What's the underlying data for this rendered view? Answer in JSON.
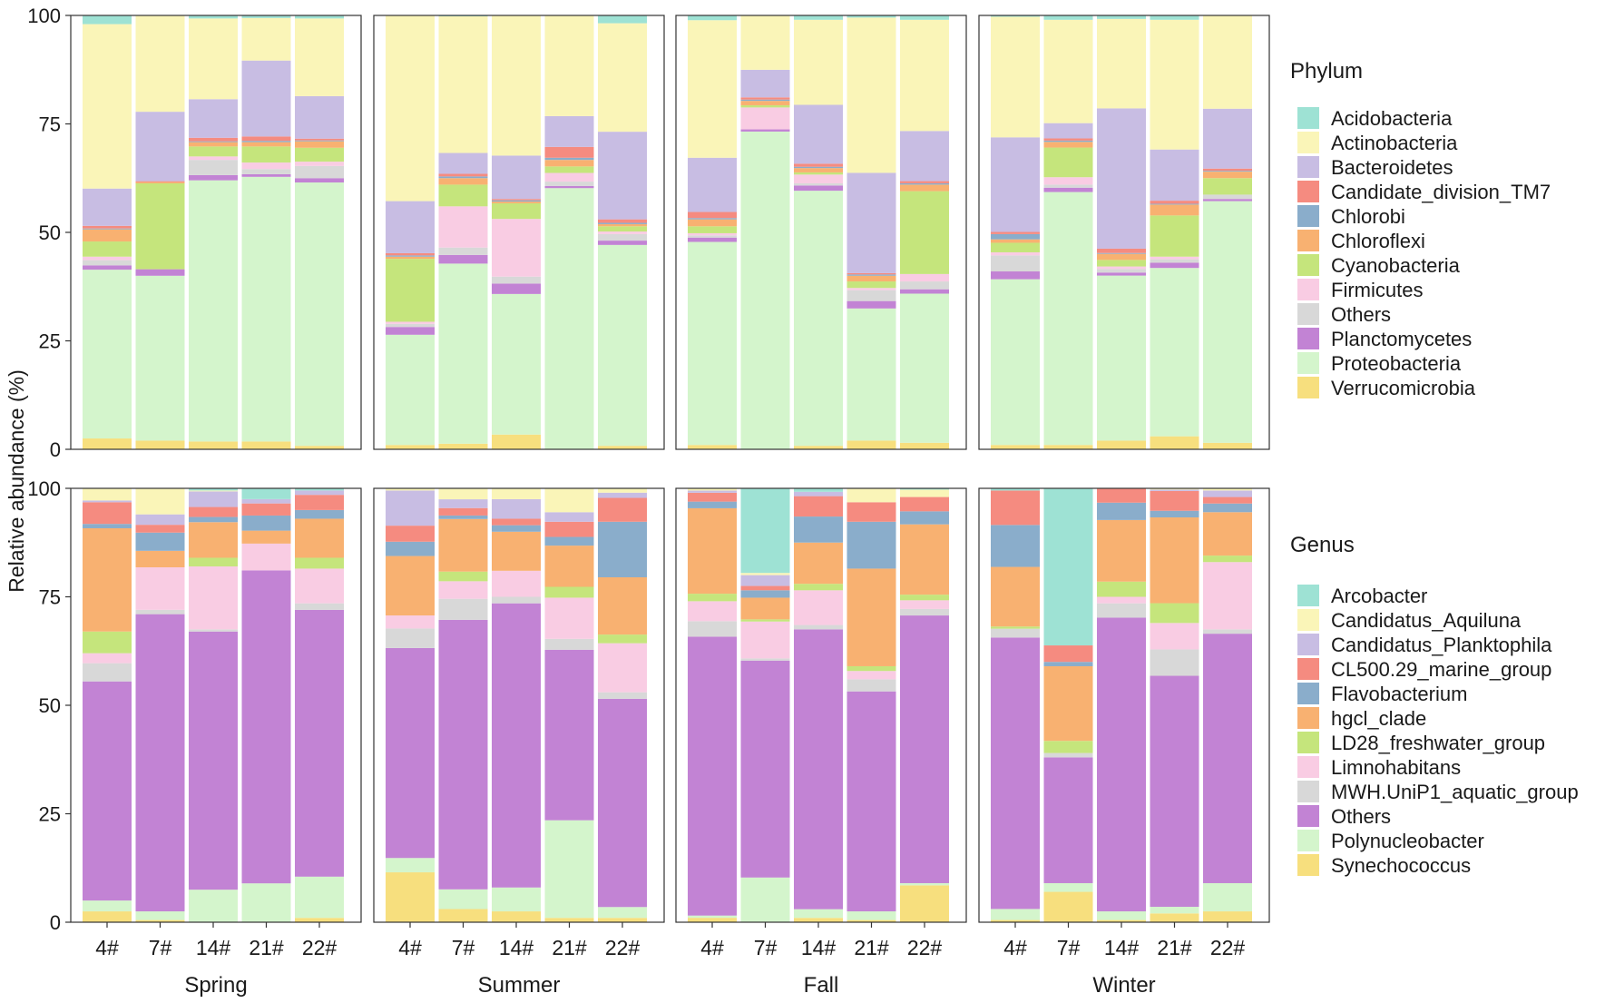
{
  "chart_data": [
    {
      "type": "bar",
      "subtype": "stacked-100",
      "level": "Phylum",
      "legend_title": "Phylum",
      "ylabel": "Relative abundance (%)",
      "ylim": [
        0,
        100
      ],
      "yticks": [
        0,
        25,
        50,
        75,
        100
      ],
      "seasons": [
        "Spring",
        "Summer",
        "Fall",
        "Winter"
      ],
      "sites": [
        "4#",
        "7#",
        "14#",
        "21#",
        "22#"
      ],
      "stack_order": [
        "Verrucomicrobia",
        "Proteobacteria",
        "Planctomycetes",
        "Others",
        "Firmicutes",
        "Cyanobacteria",
        "Chloroflexi",
        "Chlorobi",
        "Candidate_division_TM7",
        "Bacteroidetes",
        "Actinobacteria",
        "Acidobacteria"
      ],
      "legend": [
        {
          "name": "Acidobacteria",
          "color": "#9EE2D4"
        },
        {
          "name": "Actinobacteria",
          "color": "#FAF5B8"
        },
        {
          "name": "Bacteroidetes",
          "color": "#C8BDE3"
        },
        {
          "name": "Candidate_division_TM7",
          "color": "#F58B80"
        },
        {
          "name": "Chlorobi",
          "color": "#8AADCB"
        },
        {
          "name": "Chloroflexi",
          "color": "#F8B171"
        },
        {
          "name": "Cyanobacteria",
          "color": "#C5E57C"
        },
        {
          "name": "Firmicutes",
          "color": "#F9CCE3"
        },
        {
          "name": "Others",
          "color": "#D8D8D8"
        },
        {
          "name": "Planctomycetes",
          "color": "#C283D4"
        },
        {
          "name": "Proteobacteria",
          "color": "#D4F5CC"
        },
        {
          "name": "Verrucomicrobia",
          "color": "#F7DF7E"
        }
      ],
      "values": {
        "Spring": [
          [
            2.5,
            38.9,
            1.0,
            1.2,
            0.8,
            3.5,
            2.8,
            0.2,
            0.6,
            8.6,
            37.9,
            2.0
          ],
          [
            2.0,
            38.0,
            1.5,
            0,
            0,
            19.8,
            0.3,
            0,
            0.2,
            16.0,
            22.2,
            0
          ],
          [
            1.8,
            60.2,
            1.2,
            3.5,
            0.8,
            2.3,
            1.0,
            0.2,
            0.8,
            8.9,
            18.6,
            0.7
          ],
          [
            1.8,
            61.0,
            0.6,
            1.2,
            1.5,
            3.7,
            1.0,
            0.3,
            1.0,
            17.5,
            9.8,
            0.6
          ],
          [
            0.8,
            60.7,
            1.0,
            2.8,
            1.0,
            3.2,
            1.5,
            0.2,
            0.4,
            9.8,
            17.9,
            0.7
          ]
        ],
        "Summer": [
          [
            1.0,
            25.4,
            1.8,
            0.7,
            0.5,
            14.5,
            0.5,
            0.3,
            0.5,
            12.0,
            42.8,
            0
          ],
          [
            1.3,
            41.5,
            2.0,
            1.7,
            9.5,
            5.0,
            1.5,
            0.4,
            0.6,
            4.8,
            31.5,
            0.2
          ],
          [
            3.4,
            32.4,
            2.4,
            1.6,
            13.3,
            3.6,
            0.4,
            0.3,
            0.3,
            10.0,
            32.3,
            0
          ],
          [
            0,
            60.2,
            0.5,
            1.0,
            2.0,
            1.5,
            1.5,
            0.5,
            2.5,
            7.1,
            23.2,
            0
          ],
          [
            0.8,
            46.3,
            1.0,
            1.5,
            0.6,
            1.2,
            0.5,
            0.3,
            0.8,
            20.2,
            25.0,
            1.8
          ]
        ],
        "Fall": [
          [
            1.0,
            46.8,
            1.0,
            0.5,
            0.5,
            1.6,
            1.6,
            0.3,
            1.4,
            12.5,
            31.7,
            1.1
          ],
          [
            0,
            72.5,
            0.5,
            0,
            5.0,
            0.5,
            1.0,
            0.3,
            0.5,
            6.3,
            12.4,
            0
          ],
          [
            0.8,
            58.5,
            1.2,
            0.5,
            2.0,
            0.5,
            1.0,
            0.3,
            0.7,
            13.5,
            19.5,
            1.0
          ],
          [
            2.0,
            30.3,
            1.7,
            2.5,
            0.5,
            1.5,
            1.3,
            0.3,
            0.3,
            23.0,
            35.6,
            0.5
          ],
          [
            1.5,
            34.2,
            1.0,
            1.8,
            1.7,
            19.0,
            1.5,
            0.3,
            0.5,
            11.5,
            25.5,
            1.0
          ]
        ],
        "Winter": [
          [
            1.0,
            38.2,
            1.8,
            3.7,
            0.7,
            2.2,
            0.8,
            1.2,
            0.5,
            21.8,
            27.8,
            0.3
          ],
          [
            1.0,
            58.0,
            1.0,
            0.7,
            1.7,
            6.8,
            1.3,
            0.3,
            0.5,
            3.5,
            23.7,
            1.0
          ],
          [
            2.0,
            38.0,
            0.7,
            0.8,
            0.6,
            1.5,
            1.4,
            0.2,
            1.0,
            32.3,
            20.6,
            0.8
          ],
          [
            3.0,
            38.8,
            1.2,
            0.8,
            0.6,
            9.5,
            2.5,
            0.2,
            0.7,
            11.8,
            29.9,
            1.0
          ],
          [
            1.5,
            55.7,
            0.5,
            1.0,
            0,
            3.8,
            1.5,
            0.2,
            0.5,
            13.8,
            21.5,
            0
          ]
        ]
      }
    },
    {
      "type": "bar",
      "subtype": "stacked-100",
      "level": "Genus",
      "legend_title": "Genus",
      "ylabel": "Relative abundance (%)",
      "ylim": [
        0,
        100
      ],
      "yticks": [
        0,
        25,
        50,
        75,
        100
      ],
      "seasons": [
        "Spring",
        "Summer",
        "Fall",
        "Winter"
      ],
      "sites": [
        "4#",
        "7#",
        "14#",
        "21#",
        "22#"
      ],
      "stack_order": [
        "Synechococcus",
        "Polynucleobacter",
        "Others",
        "MWH.UniP1_aquatic_group",
        "Limnohabitans",
        "LD28_freshwater_group",
        "hgcl_clade",
        "Flavobacterium",
        "CL500.29_marine_group",
        "Candidatus_Planktophila",
        "Candidatus_Aquiluna",
        "Arcobacter"
      ],
      "legend": [
        {
          "name": "Arcobacter",
          "color": "#9EE2D4"
        },
        {
          "name": "Candidatus_Aquiluna",
          "color": "#FAF5B8"
        },
        {
          "name": "Candidatus_Planktophila",
          "color": "#C8BDE3"
        },
        {
          "name": "CL500.29_marine_group",
          "color": "#F58B80"
        },
        {
          "name": "Flavobacterium",
          "color": "#8AADCB"
        },
        {
          "name": "hgcl_clade",
          "color": "#F8B171"
        },
        {
          "name": "LD28_freshwater_group",
          "color": "#C5E57C"
        },
        {
          "name": "Limnohabitans",
          "color": "#F9CCE3"
        },
        {
          "name": "MWH.UniP1_aquatic_group",
          "color": "#D8D8D8"
        },
        {
          "name": "Others",
          "color": "#C283D4"
        },
        {
          "name": "Polynucleobacter",
          "color": "#D4F5CC"
        },
        {
          "name": "Synechococcus",
          "color": "#F7DF7E"
        }
      ],
      "values": {
        "Spring": [
          [
            2.5,
            2.5,
            50.5,
            4.2,
            2.3,
            5.0,
            23.8,
            1.0,
            5.0,
            0.4,
            2.8,
            0
          ],
          [
            0.5,
            2.0,
            68.5,
            1.0,
            9.8,
            0,
            3.8,
            4.2,
            1.8,
            2.4,
            6.0,
            0
          ],
          [
            0,
            7.5,
            59.5,
            0.5,
            14.5,
            2.0,
            8.2,
            1.2,
            2.3,
            3.6,
            0.2,
            0.5
          ],
          [
            0,
            9.0,
            72.5,
            0,
            6.2,
            0,
            3.0,
            3.5,
            2.8,
            1.0,
            0,
            2.5
          ],
          [
            1.0,
            9.5,
            61.5,
            1.5,
            8.0,
            2.5,
            9.0,
            2.0,
            3.5,
            1.0,
            0,
            0.5
          ]
        ],
        "Summer": [
          [
            11.5,
            3.3,
            48.4,
            4.5,
            3.0,
            0,
            13.7,
            3.3,
            3.7,
            8.1,
            0.5,
            0
          ],
          [
            3.0,
            4.5,
            61.5,
            4.8,
            4.0,
            2.2,
            12.0,
            0.8,
            1.7,
            2.0,
            2.5,
            0
          ],
          [
            2.5,
            5.5,
            65.5,
            1.5,
            6.0,
            0,
            9.0,
            1.5,
            1.5,
            4.5,
            2.5,
            0
          ],
          [
            1.0,
            22.5,
            39.3,
            2.5,
            9.5,
            2.5,
            9.5,
            2.0,
            3.5,
            2.2,
            5.5,
            0
          ],
          [
            1.0,
            2.5,
            48.0,
            1.5,
            11.3,
            2.0,
            13.2,
            12.8,
            5.5,
            1.2,
            1.0,
            0
          ]
        ],
        "Fall": [
          [
            1.0,
            0.5,
            63.0,
            3.5,
            4.5,
            1.7,
            19.3,
            1.5,
            2.0,
            0.5,
            0.5,
            0
          ],
          [
            0,
            10.3,
            50.0,
            0.5,
            8.5,
            0.5,
            5.0,
            1.7,
            1.0,
            2.5,
            0.5,
            19.5
          ],
          [
            1.0,
            2.0,
            64.5,
            1.0,
            8.0,
            1.5,
            9.5,
            6.0,
            4.7,
            1.0,
            0,
            0.8
          ],
          [
            0.5,
            2.0,
            50.7,
            2.8,
            1.9,
            1.1,
            22.5,
            10.8,
            4.5,
            0,
            3.2,
            0
          ],
          [
            8.5,
            0.5,
            61.7,
            1.5,
            2.0,
            1.3,
            16.2,
            3.0,
            3.3,
            0,
            1.7,
            0.3
          ]
        ],
        "Winter": [
          [
            0.5,
            2.5,
            61.5,
            2.0,
            0,
            0.5,
            13.5,
            9.5,
            7.8,
            0,
            0,
            0.5
          ],
          [
            7.0,
            2.0,
            29.0,
            1.0,
            0,
            2.8,
            17.2,
            1.0,
            3.8,
            0,
            0,
            36.2
          ],
          [
            0.5,
            2.0,
            67.7,
            3.3,
            1.5,
            3.5,
            14.2,
            4.0,
            3.3,
            0,
            0,
            0
          ],
          [
            2.0,
            1.5,
            52.5,
            6.0,
            6.0,
            4.5,
            19.5,
            1.5,
            4.5,
            0.3,
            0.3,
            0
          ],
          [
            2.5,
            6.5,
            57.5,
            1.0,
            15.5,
            1.5,
            10.0,
            2.0,
            1.5,
            1.5,
            0.5,
            0
          ]
        ]
      }
    }
  ]
}
